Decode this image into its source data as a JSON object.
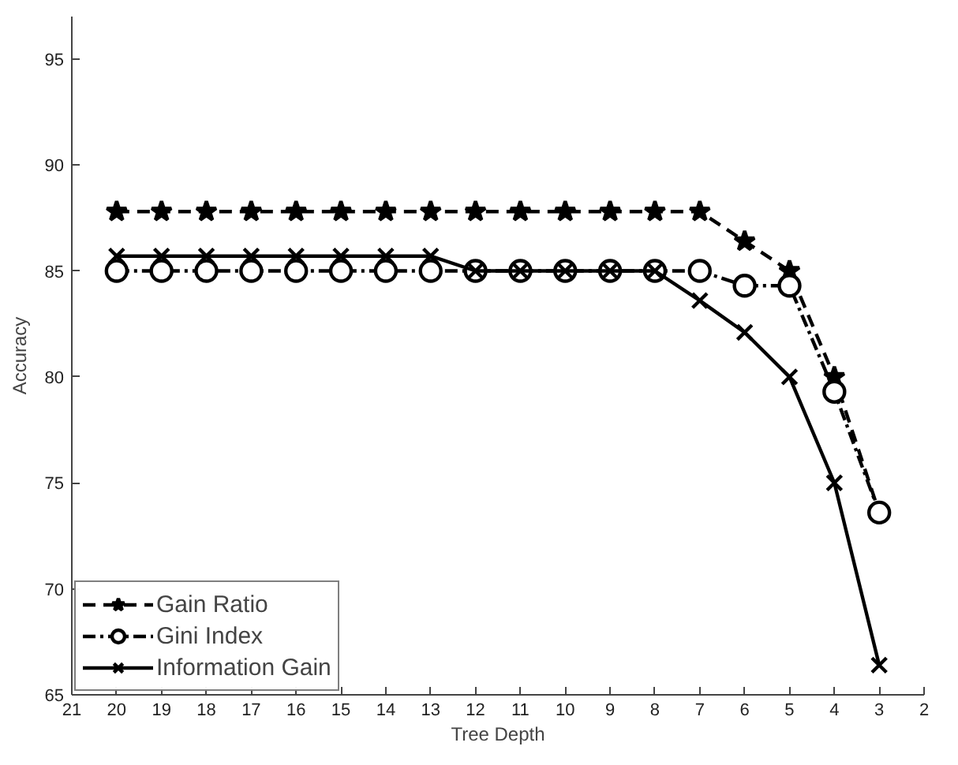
{
  "chart_data": {
    "type": "line",
    "xlabel": "Tree Depth",
    "ylabel": "Accuracy",
    "x": [
      20,
      19,
      18,
      17,
      16,
      15,
      14,
      13,
      12,
      11,
      10,
      9,
      8,
      7,
      6,
      5,
      4,
      3
    ],
    "xlim": [
      21,
      2
    ],
    "xticks": [
      21,
      20,
      19,
      18,
      17,
      16,
      15,
      14,
      13,
      12,
      11,
      10,
      9,
      8,
      7,
      6,
      5,
      4,
      3,
      2
    ],
    "ylim": [
      65,
      97
    ],
    "yticks": [
      65,
      70,
      75,
      80,
      85,
      90,
      95
    ],
    "grid": false,
    "legend": "bottom left",
    "series": [
      {
        "name": "Gain Ratio",
        "color": "#000000",
        "marker": "star",
        "line_style": "dashed",
        "values": [
          87.8,
          87.8,
          87.8,
          87.8,
          87.8,
          87.8,
          87.8,
          87.8,
          87.8,
          87.8,
          87.8,
          87.8,
          87.8,
          87.8,
          86.4,
          85.0,
          80.0,
          73.6
        ]
      },
      {
        "name": "Gini Index",
        "color": "#000000",
        "marker": "circle",
        "line_style": "dotted",
        "values": [
          85.0,
          85.0,
          85.0,
          85.0,
          85.0,
          85.0,
          85.0,
          85.0,
          85.0,
          85.0,
          85.0,
          85.0,
          85.0,
          85.0,
          84.3,
          84.3,
          79.3,
          73.6
        ]
      },
      {
        "name": "Information Gain",
        "color": "#000000",
        "marker": "cross",
        "line_style": "solid",
        "values": [
          85.7,
          85.7,
          85.7,
          85.7,
          85.7,
          85.7,
          85.7,
          85.7,
          85.0,
          85.0,
          85.0,
          85.0,
          85.0,
          83.6,
          82.1,
          80.0,
          75.0,
          66.4
        ]
      }
    ]
  }
}
